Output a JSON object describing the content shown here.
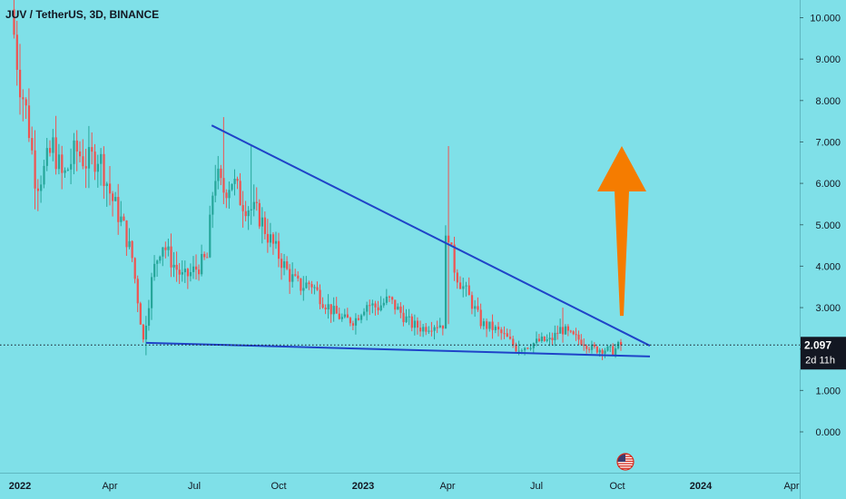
{
  "header": {
    "title": "JUV / TetherUS, 3D, BINANCE"
  },
  "price_badge": {
    "price": "2.097",
    "countdown": "2d 11h"
  },
  "flag_icon": "us-flag-icon",
  "colors": {
    "background": "#7fe0e8",
    "up": "#26a69a",
    "down": "#ef5350",
    "trendline": "#1f43c8",
    "arrow": "#f57c00",
    "badge": "#131722"
  },
  "chart_data": {
    "type": "candlestick",
    "title": "JUV / TetherUS, 3D, BINANCE",
    "ylim": [
      -0.9,
      10.4
    ],
    "yticks": [
      "10.000",
      "9.000",
      "8.000",
      "7.000",
      "6.000",
      "5.000",
      "4.000",
      "3.000",
      "2.000",
      "1.000",
      "0.000"
    ],
    "xticks": [
      {
        "label": "2022",
        "bold": true
      },
      {
        "label": "Apr",
        "bold": false
      },
      {
        "label": "Jul",
        "bold": false
      },
      {
        "label": "Oct",
        "bold": false
      },
      {
        "label": "2023",
        "bold": true
      },
      {
        "label": "Apr",
        "bold": false
      },
      {
        "label": "Jul",
        "bold": false
      },
      {
        "label": "Oct",
        "bold": false
      },
      {
        "label": "2024",
        "bold": true
      },
      {
        "label": "Apr",
        "bold": false
      }
    ],
    "last_price": 2.097,
    "price_path": [
      [
        "2021-12-26",
        10.2
      ],
      [
        "2022-01-03",
        8.6
      ],
      [
        "2022-01-12",
        7.5
      ],
      [
        "2022-01-20",
        6.0
      ],
      [
        "2022-01-28",
        6.3
      ],
      [
        "2022-02-06",
        6.9
      ],
      [
        "2022-02-16",
        6.1
      ],
      [
        "2022-03-01",
        6.8
      ],
      [
        "2022-03-12",
        6.5
      ],
      [
        "2022-03-24",
        6.7
      ],
      [
        "2022-04-05",
        5.7
      ],
      [
        "2022-04-18",
        5.0
      ],
      [
        "2022-04-28",
        4.2
      ],
      [
        "2022-05-10",
        2.2
      ],
      [
        "2022-05-20",
        3.8
      ],
      [
        "2022-05-30",
        4.6
      ],
      [
        "2022-06-10",
        4.1
      ],
      [
        "2022-06-22",
        3.7
      ],
      [
        "2022-07-04",
        3.9
      ],
      [
        "2022-07-18",
        4.2
      ],
      [
        "2022-07-26",
        6.3
      ],
      [
        "2022-08-04",
        5.8
      ],
      [
        "2022-08-14",
        6.1
      ],
      [
        "2022-08-24",
        5.6
      ],
      [
        "2022-09-03",
        5.4
      ],
      [
        "2022-09-13",
        5.2
      ],
      [
        "2022-09-23",
        4.7
      ],
      [
        "2022-10-03",
        4.3
      ],
      [
        "2022-10-15",
        3.8
      ],
      [
        "2022-10-27",
        3.5
      ],
      [
        "2022-11-08",
        3.6
      ],
      [
        "2022-11-20",
        3.2
      ],
      [
        "2022-12-02",
        2.9
      ],
      [
        "2022-12-14",
        2.7
      ],
      [
        "2022-12-26",
        2.7
      ],
      [
        "2023-01-07",
        3.1
      ],
      [
        "2023-01-19",
        3.0
      ],
      [
        "2023-01-31",
        3.2
      ],
      [
        "2023-02-12",
        2.9
      ],
      [
        "2023-02-24",
        2.6
      ],
      [
        "2023-03-08",
        2.5
      ],
      [
        "2023-03-20",
        2.6
      ],
      [
        "2023-03-30",
        2.6
      ],
      [
        "2023-04-03",
        5.2
      ],
      [
        "2023-04-09",
        4.1
      ],
      [
        "2023-04-15",
        3.7
      ],
      [
        "2023-04-27",
        3.2
      ],
      [
        "2023-05-09",
        2.6
      ],
      [
        "2023-05-21",
        2.5
      ],
      [
        "2023-06-02",
        2.3
      ],
      [
        "2023-06-14",
        2.0
      ],
      [
        "2023-06-26",
        2.1
      ],
      [
        "2023-07-08",
        2.2
      ],
      [
        "2023-07-20",
        2.2
      ],
      [
        "2023-08-01",
        2.5
      ],
      [
        "2023-08-13",
        2.3
      ],
      [
        "2023-08-25",
        2.2
      ],
      [
        "2023-09-06",
        2.0
      ],
      [
        "2023-09-18",
        2.0
      ],
      [
        "2023-09-30",
        1.95
      ],
      [
        "2023-10-06",
        2.097
      ]
    ],
    "spikes": [
      {
        "date": "2022-05-10",
        "high": 2.8,
        "low": 1.85
      },
      {
        "date": "2022-08-01",
        "high": 7.6,
        "low": 5.6
      },
      {
        "date": "2022-09-01",
        "high": 6.9,
        "low": 5.0
      },
      {
        "date": "2023-04-03",
        "high": 6.9,
        "low": 2.6
      },
      {
        "date": "2023-06-12",
        "high": 2.2,
        "low": 1.85
      },
      {
        "date": "2023-08-01",
        "high": 3.0,
        "low": 2.3
      }
    ],
    "annotations": [
      {
        "type": "trendline",
        "from": [
          "2022-07-20",
          7.4
        ],
        "to": [
          "2023-11-06",
          2.08
        ]
      },
      {
        "type": "trendline",
        "from": [
          "2022-05-10",
          2.15
        ],
        "to": [
          "2023-11-06",
          1.82
        ]
      },
      {
        "type": "horizontal_dotted",
        "value": 2.097
      },
      {
        "type": "arrow_up",
        "date": "2023-10-06",
        "from": 2.8,
        "to": 6.9
      }
    ]
  }
}
